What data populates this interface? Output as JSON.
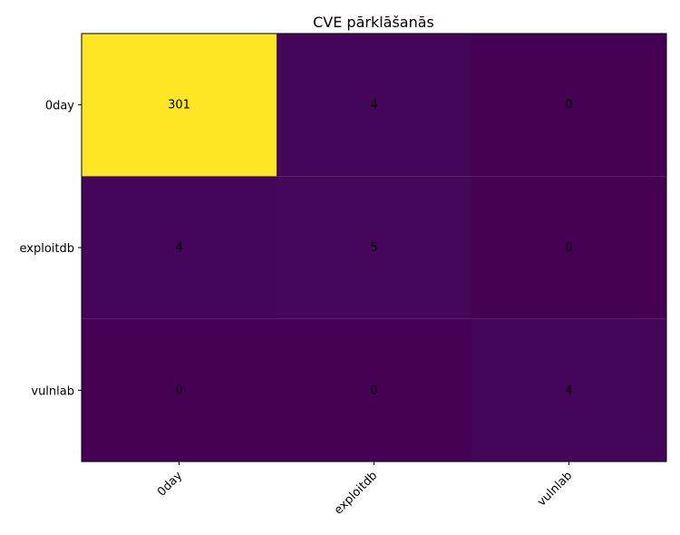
{
  "chart_data": {
    "type": "heatmap",
    "title": "CVE pārklāšanās",
    "x_categories": [
      "0day",
      "exploitdb",
      "vulnlab"
    ],
    "y_categories": [
      "0day",
      "exploitdb",
      "vulnlab"
    ],
    "values": [
      [
        301,
        4,
        0
      ],
      [
        4,
        5,
        0
      ],
      [
        0,
        0,
        4
      ]
    ],
    "colormap": "viridis",
    "color_range": [
      0,
      301
    ],
    "x_tick_rotation_deg": 45,
    "annotation_color": "#000000",
    "grid": false,
    "colorbar": false
  }
}
